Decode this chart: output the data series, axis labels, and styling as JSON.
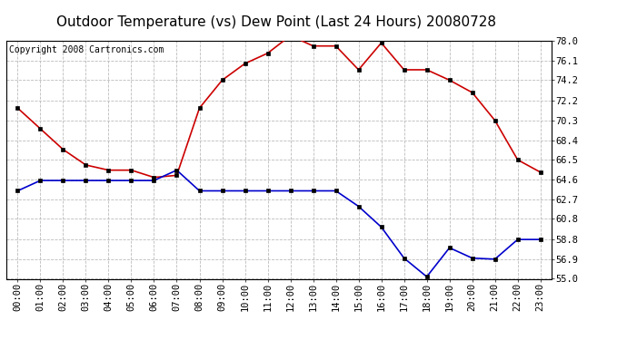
{
  "title": "Outdoor Temperature (vs) Dew Point (Last 24 Hours) 20080728",
  "copyright": "Copyright 2008 Cartronics.com",
  "hours": [
    "00:00",
    "01:00",
    "02:00",
    "03:00",
    "04:00",
    "05:00",
    "06:00",
    "07:00",
    "08:00",
    "09:00",
    "10:00",
    "11:00",
    "12:00",
    "13:00",
    "14:00",
    "15:00",
    "16:00",
    "17:00",
    "18:00",
    "19:00",
    "20:00",
    "21:00",
    "22:00",
    "23:00"
  ],
  "temp": [
    71.5,
    69.5,
    67.5,
    66.0,
    65.5,
    65.5,
    64.8,
    65.0,
    71.5,
    74.2,
    75.8,
    76.8,
    78.5,
    77.5,
    77.5,
    75.2,
    77.8,
    75.2,
    75.2,
    74.2,
    73.0,
    70.3,
    66.5,
    65.3
  ],
  "dew": [
    63.5,
    64.5,
    64.5,
    64.5,
    64.5,
    64.5,
    64.5,
    65.5,
    63.5,
    63.5,
    63.5,
    63.5,
    63.5,
    63.5,
    63.5,
    62.0,
    60.0,
    57.0,
    55.2,
    58.0,
    57.0,
    56.9,
    58.8,
    58.8
  ],
  "temp_color": "#cc0000",
  "dew_color": "#0000cc",
  "background_color": "#ffffff",
  "grid_color": "#bbbbbb",
  "ymin": 55.0,
  "ymax": 78.0,
  "yticks": [
    55.0,
    56.9,
    58.8,
    60.8,
    62.7,
    64.6,
    66.5,
    68.4,
    70.3,
    72.2,
    74.2,
    76.1,
    78.0
  ],
  "title_fontsize": 11,
  "copyright_fontsize": 7,
  "tick_fontsize": 7.5,
  "marker_size": 3,
  "linewidth": 1.2
}
